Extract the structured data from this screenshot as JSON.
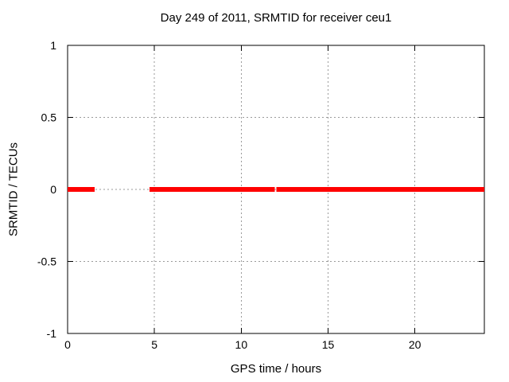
{
  "chart_data": {
    "type": "line",
    "title": "Day 249 of 2011, SRMTID for receiver ceu1",
    "xlabel": "GPS time / hours",
    "ylabel": "SRMTID / TECUs",
    "xlim": [
      0,
      24
    ],
    "ylim": [
      -1,
      1
    ],
    "xticks": [
      0,
      5,
      10,
      15,
      20
    ],
    "yticks": [
      -1,
      -0.5,
      0,
      0.5,
      1
    ],
    "grid": true,
    "legend": "none",
    "colors": {
      "series": "#ff0000",
      "grid": "#9a9a9a",
      "border": "#000000",
      "text": "#000000",
      "background": "#ffffff"
    },
    "series": [
      {
        "name": "SRMTID",
        "color": "#ff0000",
        "linewidth": 6,
        "y_value": 0,
        "segments_hours": [
          [
            0,
            1.55
          ],
          [
            4.72,
            11.92
          ],
          [
            12.02,
            24
          ]
        ]
      }
    ]
  }
}
